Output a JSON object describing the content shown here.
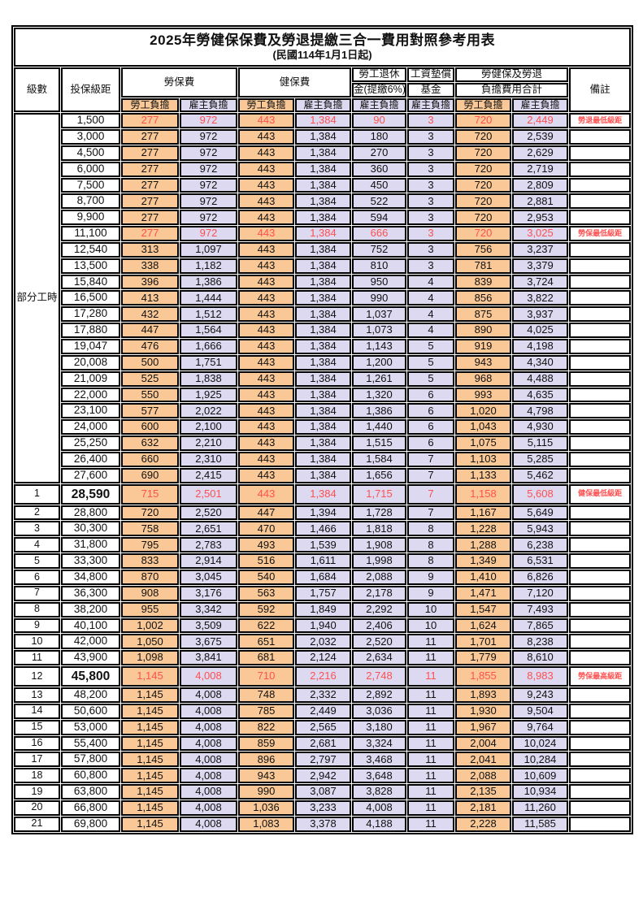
{
  "title": "2025年勞健保保費及勞退提繳三合一費用對照參考用表",
  "subtitle": "(民國114年1月1日起)",
  "colors": {
    "employee_col_bg": "#F9C896",
    "employer_col_bg": "#DCD9F0",
    "highlight_text": "#FF5050",
    "border": "#000000",
    "background": "#FFFFFF"
  },
  "header": {
    "level": "級數",
    "bracket": "投保級距",
    "labor_insurance": "勞保費",
    "health_insurance": "健保費",
    "pension_line1": "勞工退休",
    "pension_line2": "金(提繳6%)",
    "wage_fund_line1": "工資墊償",
    "wage_fund_line2": "基金",
    "total_line1": "勞健保及勞退",
    "total_line2": "負擔費用合計",
    "remark": "備註",
    "employee": "勞工負擔",
    "employer": "雇主負擔"
  },
  "part_time": {
    "label": "部分工時",
    "span": 23
  },
  "columns_note": "cells order: 勞保費勞工負擔, 勞保費雇主負擔, 健保費勞工負擔, 健保費雇主負擔, 勞工退休金雇主負擔, 工資墊償基金雇主負擔, 合計勞工負擔, 合計雇主負擔",
  "rows": [
    {
      "level": null,
      "bracket": "1,500",
      "cells": [
        "277",
        "972",
        "443",
        "1,384",
        "90",
        "3",
        "720",
        "2,449"
      ],
      "remark": "勞退最低級距",
      "red": true
    },
    {
      "level": null,
      "bracket": "3,000",
      "cells": [
        "277",
        "972",
        "443",
        "1,384",
        "180",
        "3",
        "720",
        "2,539"
      ],
      "remark": ""
    },
    {
      "level": null,
      "bracket": "4,500",
      "cells": [
        "277",
        "972",
        "443",
        "1,384",
        "270",
        "3",
        "720",
        "2,629"
      ],
      "remark": ""
    },
    {
      "level": null,
      "bracket": "6,000",
      "cells": [
        "277",
        "972",
        "443",
        "1,384",
        "360",
        "3",
        "720",
        "2,719"
      ],
      "remark": ""
    },
    {
      "level": null,
      "bracket": "7,500",
      "cells": [
        "277",
        "972",
        "443",
        "1,384",
        "450",
        "3",
        "720",
        "2,809"
      ],
      "remark": ""
    },
    {
      "level": null,
      "bracket": "8,700",
      "cells": [
        "277",
        "972",
        "443",
        "1,384",
        "522",
        "3",
        "720",
        "2,881"
      ],
      "remark": ""
    },
    {
      "level": null,
      "bracket": "9,900",
      "cells": [
        "277",
        "972",
        "443",
        "1,384",
        "594",
        "3",
        "720",
        "2,953"
      ],
      "remark": ""
    },
    {
      "level": null,
      "bracket": "11,100",
      "cells": [
        "277",
        "972",
        "443",
        "1,384",
        "666",
        "3",
        "720",
        "3,025"
      ],
      "remark": "勞保最低級距",
      "red": true
    },
    {
      "level": null,
      "bracket": "12,540",
      "cells": [
        "313",
        "1,097",
        "443",
        "1,384",
        "752",
        "3",
        "756",
        "3,237"
      ],
      "remark": ""
    },
    {
      "level": null,
      "bracket": "13,500",
      "cells": [
        "338",
        "1,182",
        "443",
        "1,384",
        "810",
        "3",
        "781",
        "3,379"
      ],
      "remark": ""
    },
    {
      "level": null,
      "bracket": "15,840",
      "cells": [
        "396",
        "1,386",
        "443",
        "1,384",
        "950",
        "4",
        "839",
        "3,724"
      ],
      "remark": ""
    },
    {
      "level": null,
      "bracket": "16,500",
      "cells": [
        "413",
        "1,444",
        "443",
        "1,384",
        "990",
        "4",
        "856",
        "3,822"
      ],
      "remark": ""
    },
    {
      "level": null,
      "bracket": "17,280",
      "cells": [
        "432",
        "1,512",
        "443",
        "1,384",
        "1,037",
        "4",
        "875",
        "3,937"
      ],
      "remark": ""
    },
    {
      "level": null,
      "bracket": "17,880",
      "cells": [
        "447",
        "1,564",
        "443",
        "1,384",
        "1,073",
        "4",
        "890",
        "4,025"
      ],
      "remark": ""
    },
    {
      "level": null,
      "bracket": "19,047",
      "cells": [
        "476",
        "1,666",
        "443",
        "1,384",
        "1,143",
        "5",
        "919",
        "4,198"
      ],
      "remark": ""
    },
    {
      "level": null,
      "bracket": "20,008",
      "cells": [
        "500",
        "1,751",
        "443",
        "1,384",
        "1,200",
        "5",
        "943",
        "4,340"
      ],
      "remark": ""
    },
    {
      "level": null,
      "bracket": "21,009",
      "cells": [
        "525",
        "1,838",
        "443",
        "1,384",
        "1,261",
        "5",
        "968",
        "4,488"
      ],
      "remark": ""
    },
    {
      "level": null,
      "bracket": "22,000",
      "cells": [
        "550",
        "1,925",
        "443",
        "1,384",
        "1,320",
        "6",
        "993",
        "4,635"
      ],
      "remark": ""
    },
    {
      "level": null,
      "bracket": "23,100",
      "cells": [
        "577",
        "2,022",
        "443",
        "1,384",
        "1,386",
        "6",
        "1,020",
        "4,798"
      ],
      "remark": ""
    },
    {
      "level": null,
      "bracket": "24,000",
      "cells": [
        "600",
        "2,100",
        "443",
        "1,384",
        "1,440",
        "6",
        "1,043",
        "4,930"
      ],
      "remark": ""
    },
    {
      "level": null,
      "bracket": "25,250",
      "cells": [
        "632",
        "2,210",
        "443",
        "1,384",
        "1,515",
        "6",
        "1,075",
        "5,115"
      ],
      "remark": ""
    },
    {
      "level": null,
      "bracket": "26,400",
      "cells": [
        "660",
        "2,310",
        "443",
        "1,384",
        "1,584",
        "7",
        "1,103",
        "5,285"
      ],
      "remark": ""
    },
    {
      "level": null,
      "bracket": "27,600",
      "cells": [
        "690",
        "2,415",
        "443",
        "1,384",
        "1,656",
        "7",
        "1,133",
        "5,462"
      ],
      "remark": ""
    },
    {
      "level": "1",
      "bracket": "28,590",
      "cells": [
        "715",
        "2,501",
        "443",
        "1,384",
        "1,715",
        "7",
        "1,158",
        "5,608"
      ],
      "remark": "健保最低級距",
      "red": true,
      "tall": true
    },
    {
      "level": "2",
      "bracket": "28,800",
      "cells": [
        "720",
        "2,520",
        "447",
        "1,394",
        "1,728",
        "7",
        "1,167",
        "5,649"
      ],
      "remark": ""
    },
    {
      "level": "3",
      "bracket": "30,300",
      "cells": [
        "758",
        "2,651",
        "470",
        "1,466",
        "1,818",
        "8",
        "1,228",
        "5,943"
      ],
      "remark": ""
    },
    {
      "level": "4",
      "bracket": "31,800",
      "cells": [
        "795",
        "2,783",
        "493",
        "1,539",
        "1,908",
        "8",
        "1,288",
        "6,238"
      ],
      "remark": ""
    },
    {
      "level": "5",
      "bracket": "33,300",
      "cells": [
        "833",
        "2,914",
        "516",
        "1,611",
        "1,998",
        "8",
        "1,349",
        "6,531"
      ],
      "remark": ""
    },
    {
      "level": "6",
      "bracket": "34,800",
      "cells": [
        "870",
        "3,045",
        "540",
        "1,684",
        "2,088",
        "9",
        "1,410",
        "6,826"
      ],
      "remark": ""
    },
    {
      "level": "7",
      "bracket": "36,300",
      "cells": [
        "908",
        "3,176",
        "563",
        "1,757",
        "2,178",
        "9",
        "1,471",
        "7,120"
      ],
      "remark": ""
    },
    {
      "level": "8",
      "bracket": "38,200",
      "cells": [
        "955",
        "3,342",
        "592",
        "1,849",
        "2,292",
        "10",
        "1,547",
        "7,493"
      ],
      "remark": ""
    },
    {
      "level": "9",
      "bracket": "40,100",
      "cells": [
        "1,002",
        "3,509",
        "622",
        "1,940",
        "2,406",
        "10",
        "1,624",
        "7,865"
      ],
      "remark": ""
    },
    {
      "level": "10",
      "bracket": "42,000",
      "cells": [
        "1,050",
        "3,675",
        "651",
        "2,032",
        "2,520",
        "11",
        "1,701",
        "8,238"
      ],
      "remark": ""
    },
    {
      "level": "11",
      "bracket": "43,900",
      "cells": [
        "1,098",
        "3,841",
        "681",
        "2,124",
        "2,634",
        "11",
        "1,779",
        "8,610"
      ],
      "remark": ""
    },
    {
      "level": "12",
      "bracket": "45,800",
      "cells": [
        "1,145",
        "4,008",
        "710",
        "2,216",
        "2,748",
        "11",
        "1,855",
        "8,983"
      ],
      "remark": "勞保最高級距",
      "red": true,
      "tall": true
    },
    {
      "level": "13",
      "bracket": "48,200",
      "cells": [
        "1,145",
        "4,008",
        "748",
        "2,332",
        "2,892",
        "11",
        "1,893",
        "9,243"
      ],
      "remark": ""
    },
    {
      "level": "14",
      "bracket": "50,600",
      "cells": [
        "1,145",
        "4,008",
        "785",
        "2,449",
        "3,036",
        "11",
        "1,930",
        "9,504"
      ],
      "remark": ""
    },
    {
      "level": "15",
      "bracket": "53,000",
      "cells": [
        "1,145",
        "4,008",
        "822",
        "2,565",
        "3,180",
        "11",
        "1,967",
        "9,764"
      ],
      "remark": ""
    },
    {
      "level": "16",
      "bracket": "55,400",
      "cells": [
        "1,145",
        "4,008",
        "859",
        "2,681",
        "3,324",
        "11",
        "2,004",
        "10,024"
      ],
      "remark": ""
    },
    {
      "level": "17",
      "bracket": "57,800",
      "cells": [
        "1,145",
        "4,008",
        "896",
        "2,797",
        "3,468",
        "11",
        "2,041",
        "10,284"
      ],
      "remark": ""
    },
    {
      "level": "18",
      "bracket": "60,800",
      "cells": [
        "1,145",
        "4,008",
        "943",
        "2,942",
        "3,648",
        "11",
        "2,088",
        "10,609"
      ],
      "remark": ""
    },
    {
      "level": "19",
      "bracket": "63,800",
      "cells": [
        "1,145",
        "4,008",
        "990",
        "3,087",
        "3,828",
        "11",
        "2,135",
        "10,934"
      ],
      "remark": ""
    },
    {
      "level": "20",
      "bracket": "66,800",
      "cells": [
        "1,145",
        "4,008",
        "1,036",
        "3,233",
        "4,008",
        "11",
        "2,181",
        "11,260"
      ],
      "remark": ""
    },
    {
      "level": "21",
      "bracket": "69,800",
      "cells": [
        "1,145",
        "4,008",
        "1,083",
        "3,378",
        "4,188",
        "11",
        "2,228",
        "11,585"
      ],
      "remark": ""
    }
  ]
}
